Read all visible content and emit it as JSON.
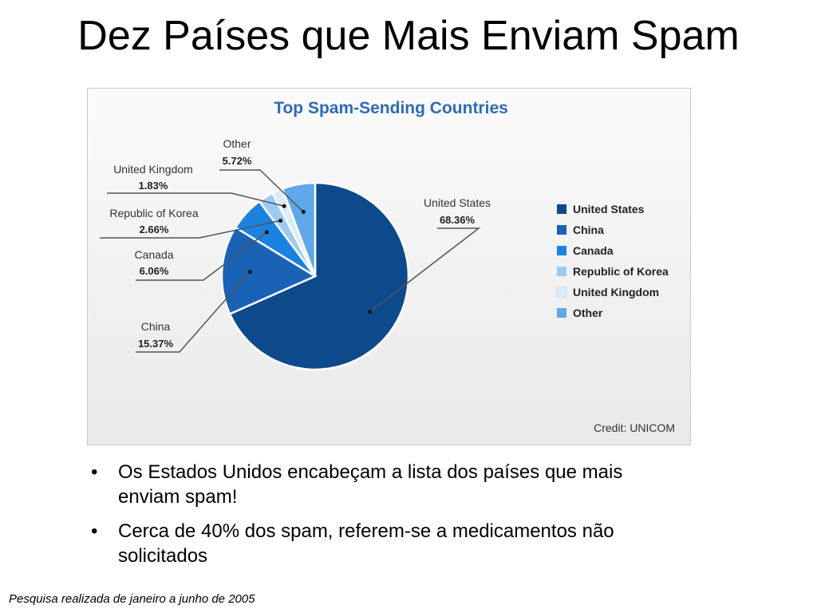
{
  "slide": {
    "title": "Dez Países que Mais Enviam Spam",
    "bullets": [
      "Os Estados Unidos encabeçam a lista dos países que mais enviam spam!",
      "Cerca de 40% dos spam, referem-se a medicamentos não solicitados"
    ],
    "bullet_glyph": "•",
    "footnote": "Pesquisa realizada de janeiro a junho de 2005"
  },
  "chart_data": {
    "type": "pie",
    "title": "Top Spam-Sending Countries",
    "credit": "Credit: UNICOM",
    "legend_placement": "right",
    "slices": [
      {
        "label": "United States",
        "value": 68.36,
        "value_label": "68.36%",
        "color": "#0d4a8c"
      },
      {
        "label": "China",
        "value": 15.37,
        "value_label": "15.37%",
        "color": "#1a62b5"
      },
      {
        "label": "Canada",
        "value": 6.06,
        "value_label": "6.06%",
        "color": "#1c82e0"
      },
      {
        "label": "Republic of Korea",
        "value": 2.66,
        "value_label": "2.66%",
        "color": "#9ccbf2"
      },
      {
        "label": "United Kingdom",
        "value": 1.83,
        "value_label": "1.83%",
        "color": "#dcebf8"
      },
      {
        "label": "Other",
        "value": 5.72,
        "value_label": "5.72%",
        "color": "#5fa8ea"
      }
    ]
  }
}
